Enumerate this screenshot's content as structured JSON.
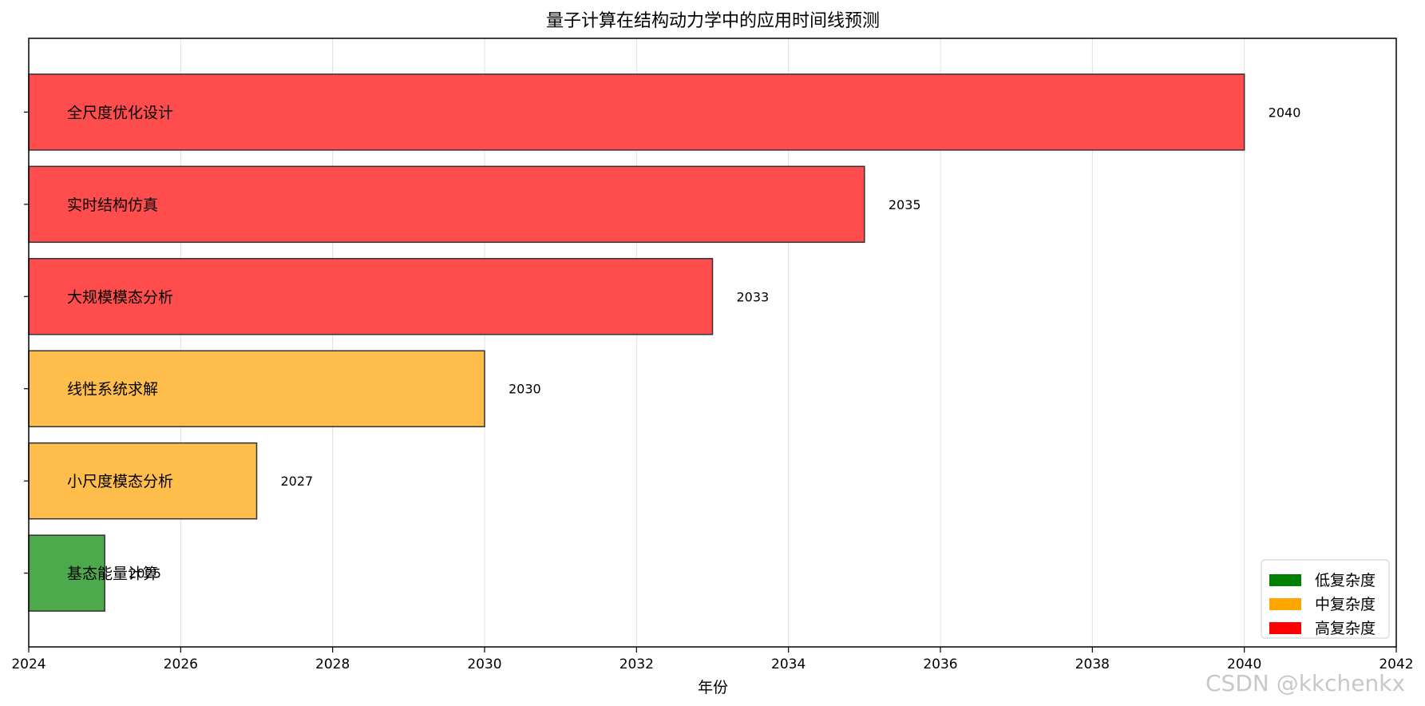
{
  "chart_data": {
    "type": "bar",
    "orientation": "horizontal",
    "title": "量子计算在结构动力学中的应用时间线预测",
    "xlabel": "年份",
    "ylabel": "",
    "xlim": [
      2024,
      2042
    ],
    "xticks": [
      2024,
      2026,
      2028,
      2030,
      2032,
      2034,
      2036,
      2038,
      2040,
      2042
    ],
    "grid": "x-vertical",
    "legend_position": "lower-right",
    "categories": [
      "全尺度优化设计",
      "实时结构仿真",
      "大规模模态分析",
      "线性系统求解",
      "小尺度模态分析",
      "基态能量计算"
    ],
    "values": [
      2040,
      2035,
      2033,
      2030,
      2027,
      2025
    ],
    "complexity": [
      "高复杂度",
      "高复杂度",
      "高复杂度",
      "中复杂度",
      "中复杂度",
      "低复杂度"
    ],
    "value_labels": [
      "2040",
      "2035",
      "2033",
      "2030",
      "2027",
      "2025"
    ],
    "legend": [
      {
        "name": "低复杂度",
        "color": "#008000",
        "bar_color": "#4caa4c"
      },
      {
        "name": "中复杂度",
        "color": "#ffa500",
        "bar_color": "#ffbe4c"
      },
      {
        "name": "高复杂度",
        "color": "#ff0000",
        "bar_color": "#ff4c4c"
      }
    ]
  },
  "watermark": "CSDN @kkchenkx"
}
